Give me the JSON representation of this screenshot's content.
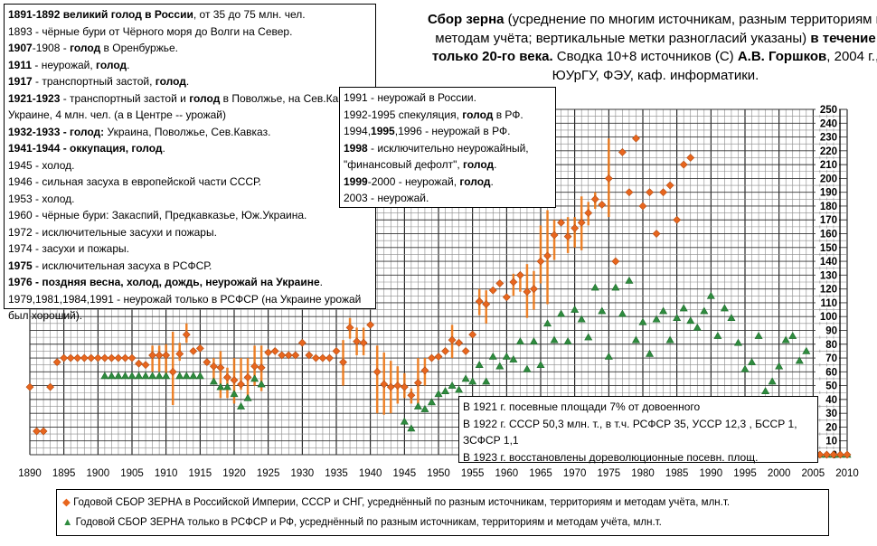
{
  "title": {
    "b1": "Сбор зерна",
    "t1": " (усреднение по многим источникам, разным территориям и методам учёта; вертикальные метки разногласий указаны) ",
    "b2": "в течение только 20-го века.",
    "t2": " Сводка 10+8 источников (С) ",
    "b3": "А.В. Горшков",
    "t3": ", 2004 г., ЮУрГУ, ФЭУ, каф. информатики."
  },
  "events_box": [
    [
      [
        "b",
        "1891-1892 великий голод в России"
      ],
      [
        "n",
        ", от 35 до 75 млн. чел."
      ]
    ],
    [
      [
        "n",
        "1893 - чёрные бури от Чёрного моря до Волги на Север."
      ]
    ],
    [
      [
        "b",
        "1907"
      ],
      [
        "n",
        "-1908 - "
      ],
      [
        "b",
        "голод"
      ],
      [
        "n",
        " в Оренбуржье."
      ]
    ],
    [
      [
        "b",
        "1911"
      ],
      [
        "n",
        " - неурожай, "
      ],
      [
        "b",
        "голод"
      ],
      [
        "n",
        "."
      ]
    ],
    [
      [
        "b",
        "1917"
      ],
      [
        "n",
        " - транспортный застой, "
      ],
      [
        "b",
        "голод"
      ],
      [
        "n",
        "."
      ]
    ],
    [
      [
        "b",
        "1921-1923"
      ],
      [
        "n",
        " - транспортный застой и "
      ],
      [
        "b",
        "голод"
      ],
      [
        "n",
        " в Поволжье, на Сев.Кавказе, Украине, 4 млн. чел. (а в Центре -- урожай)"
      ]
    ],
    [
      [
        "b",
        "1932-1933 - голод:"
      ],
      [
        "n",
        " Украина, Поволжье, Сев.Кавказ."
      ]
    ],
    [
      [
        "b",
        "1941-1944 - оккупация, голод"
      ],
      [
        "n",
        "."
      ]
    ],
    [
      [
        "n",
        "1945 - холод."
      ]
    ],
    [
      [
        "n",
        "1946 - сильная засуха в европейской части СССР."
      ]
    ],
    [
      [
        "n",
        "1953 - холод."
      ]
    ],
    [
      [
        "n",
        "1960 - чёрные бури: Закаспий, Предкавказье, Юж.Украина."
      ]
    ],
    [
      [
        "n",
        "1972 - исключительные засухи и пожары."
      ]
    ],
    [
      [
        "n",
        "1974 - засухи и пожары."
      ]
    ],
    [
      [
        "b",
        "1975"
      ],
      [
        "n",
        " - исключительная засуха в РСФСР."
      ]
    ],
    [
      [
        "b",
        "1976 - поздняя весна, холод, дождь, неурожай на Украине"
      ],
      [
        "n",
        "."
      ]
    ],
    [
      [
        "n",
        "1979,1981,1984,1991 - неурожай только в РСФСР (на Украине урожай был хороший)."
      ]
    ]
  ],
  "events_box2": [
    [
      [
        "n",
        "1991 - неурожай в России."
      ]
    ],
    [
      [
        "n",
        "1992-1995 спекуляция, "
      ],
      [
        "b",
        "голод"
      ],
      [
        "n",
        " в РФ."
      ]
    ],
    [
      [
        "n",
        "1994,"
      ],
      [
        "b",
        "1995"
      ],
      [
        "n",
        ",1996 - неурожай в РФ."
      ]
    ],
    [
      [
        "b",
        "1998"
      ],
      [
        "n",
        " - исключительно неурожайный, \"финансовый дефолт\", "
      ],
      [
        "b",
        "голод"
      ],
      [
        "n",
        "."
      ]
    ],
    [
      [
        "b",
        "1999"
      ],
      [
        "n",
        "-2000 - неурожай, "
      ],
      [
        "b",
        "голод"
      ],
      [
        "n",
        "."
      ]
    ],
    [
      [
        "n",
        "2003 - неурожай."
      ]
    ]
  ],
  "notes_box": [
    "В 1921 г. посевные площади 7% от довоенного",
    "В 1922 г. СССР 50,3 млн. т., в т.ч. РСФСР 35, УССР 12,3 , БССР 1, ЗСФСР 1,1",
    "В 1923 г. восстановлены дореволюционные посевн. площ."
  ],
  "chart_data": {
    "type": "scatter",
    "xlim": [
      1890,
      2010
    ],
    "ylim": [
      0,
      250
    ],
    "xticks": [
      1890,
      1895,
      1900,
      1905,
      1910,
      1915,
      1920,
      1925,
      1930,
      1935,
      1940,
      1945,
      1950,
      1955,
      1960,
      1965,
      1970,
      1975,
      1980,
      1985,
      1990,
      1995,
      2000,
      2005,
      2010
    ],
    "yticks": [
      0,
      10,
      20,
      30,
      40,
      50,
      60,
      70,
      80,
      90,
      100,
      110,
      120,
      130,
      140,
      150,
      160,
      170,
      180,
      190,
      200,
      210,
      220,
      230,
      240,
      250
    ],
    "grid": true,
    "legend_position": "bottom",
    "series": [
      {
        "name": "Годовой СБОР ЗЕРНА в Российской Империи, СССР и СНГ, усреднённый по разным источникам, территориям и методам учёта, млн.т.",
        "marker": "diamond",
        "color": "#e8661e",
        "points": [
          [
            1890,
            49
          ],
          [
            1891,
            17
          ],
          [
            1892,
            17
          ],
          [
            1893,
            49
          ],
          [
            1894,
            67
          ],
          [
            1895,
            70
          ],
          [
            1896,
            70
          ],
          [
            1897,
            70
          ],
          [
            1898,
            70
          ],
          [
            1899,
            70
          ],
          [
            1900,
            70
          ],
          [
            1901,
            70
          ],
          [
            1902,
            70
          ],
          [
            1903,
            70
          ],
          [
            1904,
            70
          ],
          [
            1905,
            70
          ],
          [
            1906,
            66
          ],
          [
            1907,
            65
          ],
          [
            1908,
            72
          ],
          [
            1909,
            72
          ],
          [
            1910,
            72
          ],
          [
            1911,
            60
          ],
          [
            1912,
            73
          ],
          [
            1913,
            87
          ],
          [
            1914,
            75
          ],
          [
            1915,
            77
          ],
          [
            1916,
            67
          ],
          [
            1917,
            64
          ],
          [
            1918,
            63
          ],
          [
            1919,
            56
          ],
          [
            1920,
            54
          ],
          [
            1921,
            51
          ],
          [
            1922,
            56
          ],
          [
            1923,
            64
          ],
          [
            1924,
            63
          ],
          [
            1925,
            74
          ],
          [
            1926,
            75
          ],
          [
            1927,
            72
          ],
          [
            1928,
            72
          ],
          [
            1929,
            72
          ],
          [
            1930,
            81
          ],
          [
            1931,
            72
          ],
          [
            1932,
            70
          ],
          [
            1933,
            70
          ],
          [
            1934,
            70
          ],
          [
            1935,
            75
          ],
          [
            1936,
            67
          ],
          [
            1937,
            92
          ],
          [
            1938,
            82
          ],
          [
            1939,
            81
          ],
          [
            1940,
            94
          ],
          [
            1941,
            60
          ],
          [
            1942,
            51
          ],
          [
            1943,
            49
          ],
          [
            1944,
            50
          ],
          [
            1945,
            49
          ],
          [
            1946,
            43
          ],
          [
            1947,
            52
          ],
          [
            1948,
            61
          ],
          [
            1949,
            70
          ],
          [
            1950,
            71
          ],
          [
            1951,
            75
          ],
          [
            1952,
            83
          ],
          [
            1953,
            81
          ],
          [
            1954,
            75
          ],
          [
            1955,
            87
          ],
          [
            1956,
            111
          ],
          [
            1957,
            109
          ],
          [
            1958,
            119
          ],
          [
            1959,
            124
          ],
          [
            1960,
            114
          ],
          [
            1961,
            125
          ],
          [
            1962,
            130
          ],
          [
            1963,
            118
          ],
          [
            1964,
            120
          ],
          [
            1965,
            140
          ],
          [
            1966,
            144
          ],
          [
            1967,
            159
          ],
          [
            1968,
            168
          ],
          [
            1969,
            158
          ],
          [
            1970,
            164
          ],
          [
            1971,
            168
          ],
          [
            1972,
            175
          ],
          [
            1973,
            185
          ],
          [
            1974,
            181
          ],
          [
            1975,
            200
          ],
          [
            1976,
            140
          ],
          [
            1977,
            219
          ],
          [
            1978,
            190
          ],
          [
            1979,
            229
          ],
          [
            1980,
            180
          ],
          [
            1981,
            190
          ],
          [
            1982,
            160
          ],
          [
            1983,
            190
          ],
          [
            1984,
            195
          ],
          [
            1985,
            170
          ],
          [
            1986,
            210
          ],
          [
            1987,
            215
          ],
          [
            2005,
            0
          ],
          [
            2006,
            0
          ],
          [
            2007,
            0
          ],
          [
            2008,
            0
          ],
          [
            2009,
            0
          ],
          [
            2010,
            0
          ]
        ],
        "ranges": [
          [
            1908,
            60,
            79
          ],
          [
            1909,
            60,
            79
          ],
          [
            1910,
            58,
            80
          ],
          [
            1911,
            36,
            89
          ],
          [
            1912,
            68,
            81
          ],
          [
            1913,
            81,
            95
          ],
          [
            1917,
            54,
            70
          ],
          [
            1918,
            41,
            75
          ],
          [
            1919,
            41,
            63
          ],
          [
            1920,
            37,
            70
          ],
          [
            1921,
            47,
            70
          ],
          [
            1922,
            41,
            70
          ],
          [
            1923,
            50,
            79
          ],
          [
            1924,
            46,
            79
          ],
          [
            1936,
            50,
            83
          ],
          [
            1937,
            84,
            99
          ],
          [
            1938,
            72,
            92
          ],
          [
            1939,
            72,
            92
          ],
          [
            1941,
            30,
            79
          ],
          [
            1942,
            29,
            74
          ],
          [
            1943,
            30,
            68
          ],
          [
            1944,
            37,
            64
          ],
          [
            1945,
            41,
            59
          ],
          [
            1946,
            37,
            48
          ],
          [
            1947,
            33,
            70
          ],
          [
            1948,
            50,
            70
          ],
          [
            1952,
            70,
            94
          ],
          [
            1956,
            101,
            120
          ],
          [
            1957,
            95,
            119
          ],
          [
            1961,
            115,
            131
          ],
          [
            1962,
            118,
            132
          ],
          [
            1963,
            99,
            138
          ],
          [
            1964,
            105,
            133
          ],
          [
            1965,
            124,
            166
          ],
          [
            1966,
            109,
            177
          ],
          [
            1967,
            141,
            170
          ],
          [
            1969,
            146,
            172
          ],
          [
            1970,
            150,
            172
          ],
          [
            1971,
            148,
            187
          ],
          [
            1972,
            166,
            183
          ],
          [
            1973,
            178,
            190
          ],
          [
            1975,
            172,
            229
          ]
        ]
      },
      {
        "name": "Годовой СБОР ЗЕРНА только в РСФСР и РФ, усреднённый по разным источникам, территориям и методам учёта, млн.т.",
        "marker": "triangle",
        "color": "#2e8b3e",
        "points": [
          [
            1901,
            57
          ],
          [
            1902,
            57
          ],
          [
            1903,
            57
          ],
          [
            1904,
            57
          ],
          [
            1905,
            57
          ],
          [
            1906,
            57
          ],
          [
            1907,
            57
          ],
          [
            1908,
            57
          ],
          [
            1909,
            57
          ],
          [
            1910,
            57
          ],
          [
            1912,
            57
          ],
          [
            1913,
            57
          ],
          [
            1914,
            57
          ],
          [
            1915,
            57
          ],
          [
            1917,
            53
          ],
          [
            1918,
            49
          ],
          [
            1919,
            49
          ],
          [
            1920,
            44
          ],
          [
            1921,
            35
          ],
          [
            1922,
            41
          ],
          [
            1923,
            55
          ],
          [
            1924,
            51
          ],
          [
            1945,
            24
          ],
          [
            1946,
            19
          ],
          [
            1947,
            35
          ],
          [
            1948,
            33
          ],
          [
            1949,
            38
          ],
          [
            1950,
            44
          ],
          [
            1951,
            46
          ],
          [
            1952,
            50
          ],
          [
            1953,
            47
          ],
          [
            1954,
            55
          ],
          [
            1955,
            53
          ],
          [
            1956,
            65
          ],
          [
            1957,
            53
          ],
          [
            1958,
            71
          ],
          [
            1959,
            64
          ],
          [
            1960,
            71
          ],
          [
            1961,
            69
          ],
          [
            1962,
            82
          ],
          [
            1963,
            62
          ],
          [
            1964,
            82
          ],
          [
            1965,
            65
          ],
          [
            1966,
            95
          ],
          [
            1967,
            83
          ],
          [
            1968,
            102
          ],
          [
            1969,
            82
          ],
          [
            1970,
            105
          ],
          [
            1971,
            98
          ],
          [
            1972,
            85
          ],
          [
            1973,
            121
          ],
          [
            1974,
            104
          ],
          [
            1975,
            71
          ],
          [
            1976,
            121
          ],
          [
            1977,
            102
          ],
          [
            1978,
            126
          ],
          [
            1979,
            83
          ],
          [
            1980,
            96
          ],
          [
            1981,
            73
          ],
          [
            1982,
            98
          ],
          [
            1983,
            104
          ],
          [
            1984,
            83
          ],
          [
            1985,
            99
          ],
          [
            1986,
            106
          ],
          [
            1987,
            97
          ],
          [
            1988,
            92
          ],
          [
            1989,
            104
          ],
          [
            1990,
            115
          ],
          [
            1991,
            86
          ],
          [
            1992,
            106
          ],
          [
            1993,
            99
          ],
          [
            1994,
            81
          ],
          [
            1995,
            62
          ],
          [
            1996,
            67
          ],
          [
            1997,
            86
          ],
          [
            1998,
            46
          ],
          [
            1999,
            53
          ],
          [
            2000,
            64
          ],
          [
            2001,
            83
          ],
          [
            2002,
            86
          ],
          [
            2003,
            68
          ],
          [
            2004,
            75
          ],
          [
            2005,
            0
          ],
          [
            2006,
            0
          ],
          [
            2007,
            0
          ],
          [
            2008,
            0
          ],
          [
            2009,
            0
          ],
          [
            2010,
            0
          ]
        ]
      }
    ]
  }
}
